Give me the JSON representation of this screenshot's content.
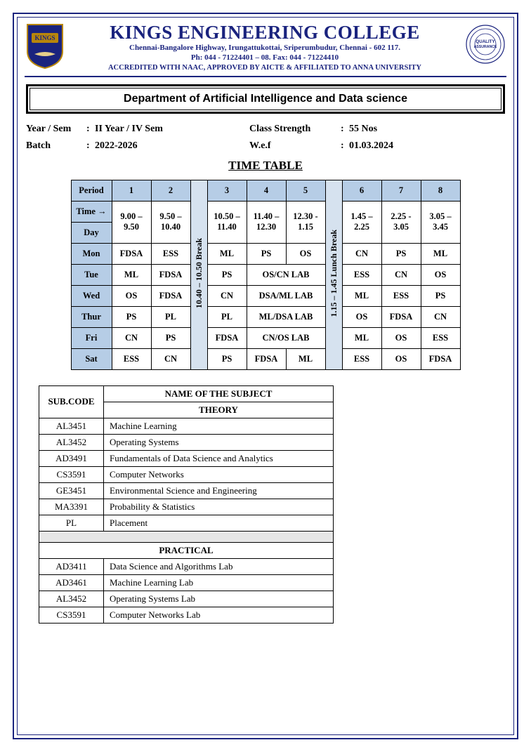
{
  "header": {
    "college": "KINGS ENGINEERING COLLEGE",
    "address_line1": "Chennai-Bangalore Highway, Irungattukottai, Sriperumbudur, Chennai - 602 117.",
    "address_line2": "Ph: 044 - 71224401 – 08. Fax: 044 - 71224410",
    "accreditation": "ACCREDITED WITH NAAC, APPROVED BY AICTE & AFFILIATED TO ANNA UNIVERSITY",
    "logo_text": "KINGS",
    "seal_line1": "QUALITY",
    "seal_line2": "ASSURANCE"
  },
  "department_title": "Department of Artificial Intelligence and Data science",
  "meta": {
    "year_sem_label": "Year / Sem",
    "year_sem_value": "II Year / IV Sem",
    "class_strength_label": "Class Strength",
    "class_strength_value": "55 Nos",
    "batch_label": "Batch",
    "batch_value": "2022-2026",
    "wef_label": "W.e.f",
    "wef_value": "01.03.2024"
  },
  "timetable_title": "TIME TABLE",
  "timetable": {
    "header": {
      "period_label": "Period",
      "time_label": "Time →",
      "day_label": "Day",
      "periods": [
        "1",
        "2",
        "3",
        "4",
        "5",
        "6",
        "7",
        "8"
      ],
      "times": [
        "9.00 – 9.50",
        "9.50 – 10.40",
        "10.50 – 11.40",
        "11.40 – 12.30",
        "12.30 - 1.15",
        "1.45 – 2.25",
        "2.25 - 3.05",
        "3.05 – 3.45"
      ],
      "break_label": "10.40 – 10.50   Break",
      "lunch_label": "1.15 – 1.45 Lunch Break"
    },
    "rows": [
      {
        "day": "Mon",
        "c": [
          "FDSA",
          "ESS",
          "ML",
          "PS",
          "OS",
          "CN",
          "PS",
          "ML"
        ],
        "merge45": null
      },
      {
        "day": "Tue",
        "c": [
          "ML",
          "FDSA",
          "PS",
          "",
          "",
          "ESS",
          "CN",
          "OS"
        ],
        "merge45": "OS/CN LAB"
      },
      {
        "day": "Wed",
        "c": [
          "OS",
          "FDSA",
          "CN",
          "",
          "",
          "ML",
          "ESS",
          "PS"
        ],
        "merge45": "DSA/ML LAB"
      },
      {
        "day": "Thur",
        "c": [
          "PS",
          "PL",
          "PL",
          "",
          "",
          "OS",
          "FDSA",
          "CN"
        ],
        "merge45": "ML/DSA LAB"
      },
      {
        "day": "Fri",
        "c": [
          "CN",
          "PS",
          "FDSA",
          "",
          "",
          "ML",
          "OS",
          "ESS"
        ],
        "merge45": "CN/OS LAB"
      },
      {
        "day": "Sat",
        "c": [
          "ESS",
          "CN",
          "PS",
          "FDSA",
          "ML",
          "ESS",
          "OS",
          "FDSA"
        ],
        "merge45": null
      }
    ]
  },
  "subjects": {
    "code_header": "SUB.CODE",
    "name_header": "NAME OF THE SUBJECT",
    "theory_label": "THEORY",
    "practical_label": "PRACTICAL",
    "theory": [
      {
        "code": "AL3451",
        "name": "Machine Learning"
      },
      {
        "code": "AL3452",
        "name": "Operating Systems"
      },
      {
        "code": "AD3491",
        "name": "Fundamentals of Data Science and Analytics"
      },
      {
        "code": "CS3591",
        "name": "Computer Networks"
      },
      {
        "code": "GE3451",
        "name": "Environmental Science and Engineering"
      },
      {
        "code": "MA3391",
        "name": "Probability & Statistics"
      },
      {
        "code": "PL",
        "name": "Placement"
      }
    ],
    "practical": [
      {
        "code": "AD3411",
        "name": "Data Science and Algorithms Lab"
      },
      {
        "code": "AD3461",
        "name": " Machine Learning Lab"
      },
      {
        "code": "AL3452",
        "name": " Operating Systems Lab"
      },
      {
        "code": "CS3591",
        "name": " Computer Networks Lab"
      }
    ]
  },
  "colors": {
    "brand": "#1a237e",
    "table_header_bg": "#b6cde6",
    "break_bg": "#d6e2ef",
    "blank_row_bg": "#e6e6e6"
  }
}
